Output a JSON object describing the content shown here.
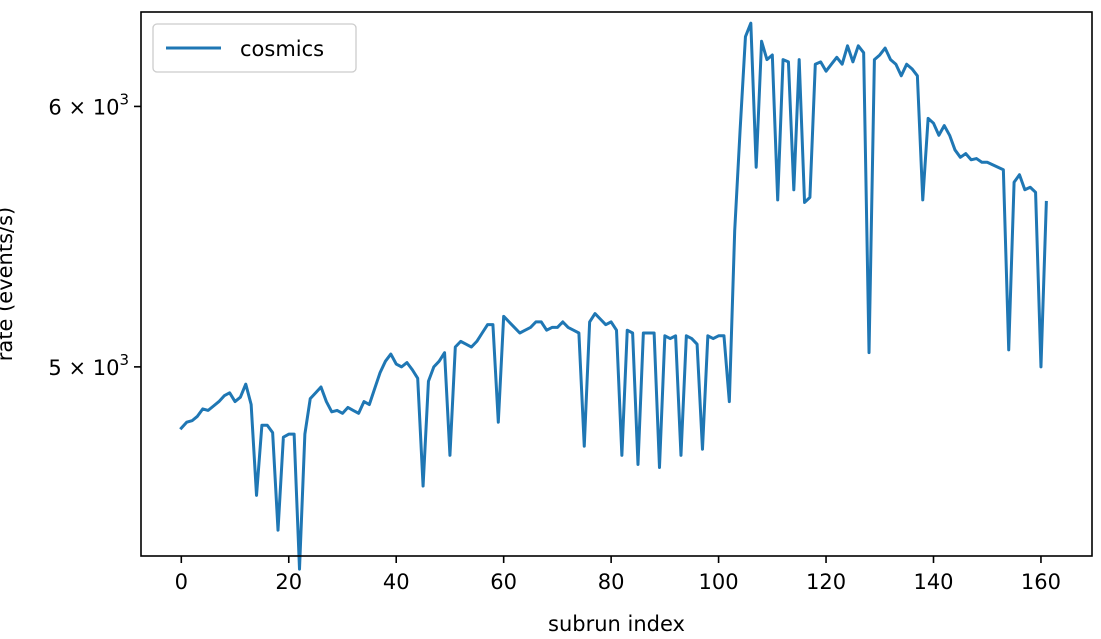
{
  "chart_data": {
    "type": "line",
    "xlabel": "subrun index",
    "ylabel": "rate (events/s)",
    "xlim": [
      -7.5,
      169.5
    ],
    "ylim": [
      4380,
      6410
    ],
    "y_scale": "log",
    "grid": false,
    "legend_position": "top-left",
    "x_ticks": [
      0,
      20,
      40,
      60,
      80,
      100,
      120,
      140,
      160
    ],
    "y_ticks": [
      {
        "value": 5000,
        "base": "5 × 10",
        "exp": "3"
      },
      {
        "value": 6000,
        "base": "6 × 10",
        "exp": "3"
      }
    ],
    "series": [
      {
        "name": "cosmics",
        "color": "#1f77b4",
        "x_start": 0,
        "x_step": 1,
        "values": [
          4790,
          4810,
          4815,
          4830,
          4855,
          4850,
          4865,
          4880,
          4900,
          4910,
          4880,
          4895,
          4940,
          4870,
          4570,
          4800,
          4800,
          4775,
          4460,
          4760,
          4770,
          4770,
          4340,
          4770,
          4890,
          4910,
          4930,
          4880,
          4845,
          4850,
          4840,
          4860,
          4850,
          4840,
          4880,
          4870,
          4925,
          4980,
          5020,
          5045,
          5010,
          5000,
          5015,
          4990,
          4960,
          4600,
          4950,
          5000,
          5020,
          5050,
          4700,
          5070,
          5090,
          5080,
          5070,
          5090,
          5120,
          5150,
          5150,
          4810,
          5180,
          5160,
          5140,
          5120,
          5130,
          5140,
          5160,
          5160,
          5130,
          5140,
          5140,
          5160,
          5140,
          5130,
          5120,
          4730,
          5160,
          5190,
          5170,
          5150,
          5160,
          5130,
          4700,
          5130,
          5120,
          4670,
          5120,
          5120,
          5120,
          4660,
          5110,
          5100,
          5110,
          4700,
          5110,
          5100,
          5080,
          4720,
          5110,
          5100,
          5110,
          5110,
          4880,
          5500,
          5900,
          6300,
          6360,
          5750,
          6280,
          6200,
          6220,
          5620,
          6200,
          6190,
          5660,
          6200,
          5610,
          5630,
          6180,
          6190,
          6150,
          6180,
          6210,
          6180,
          6260,
          6190,
          6260,
          6230,
          5050,
          6200,
          6220,
          6250,
          6200,
          6180,
          6130,
          6180,
          6160,
          6130,
          5620,
          5950,
          5930,
          5880,
          5920,
          5880,
          5820,
          5790,
          5805,
          5780,
          5785,
          5770,
          5770,
          5760,
          5750,
          5740,
          5060,
          5690,
          5720,
          5660,
          5670,
          5650,
          5000,
          5610
        ]
      }
    ]
  }
}
